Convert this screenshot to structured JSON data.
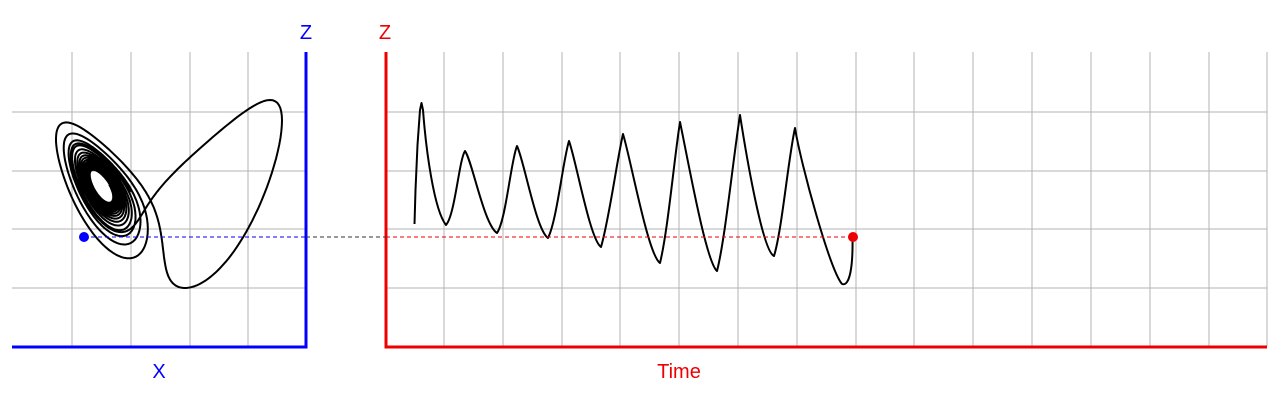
{
  "left_panel": {
    "x_axis_label": "X",
    "z_axis_label": "Z",
    "axis_color": "#0000ff"
  },
  "right_panel": {
    "time_axis_label": "Time",
    "z_axis_label": "Z",
    "axis_color": "#ee0000"
  },
  "colors": {
    "grid": "#b3b3b3",
    "curve": "#000000",
    "connector": "#333333",
    "marker_left": "#0000ff",
    "marker_right": "#ee0000"
  }
}
